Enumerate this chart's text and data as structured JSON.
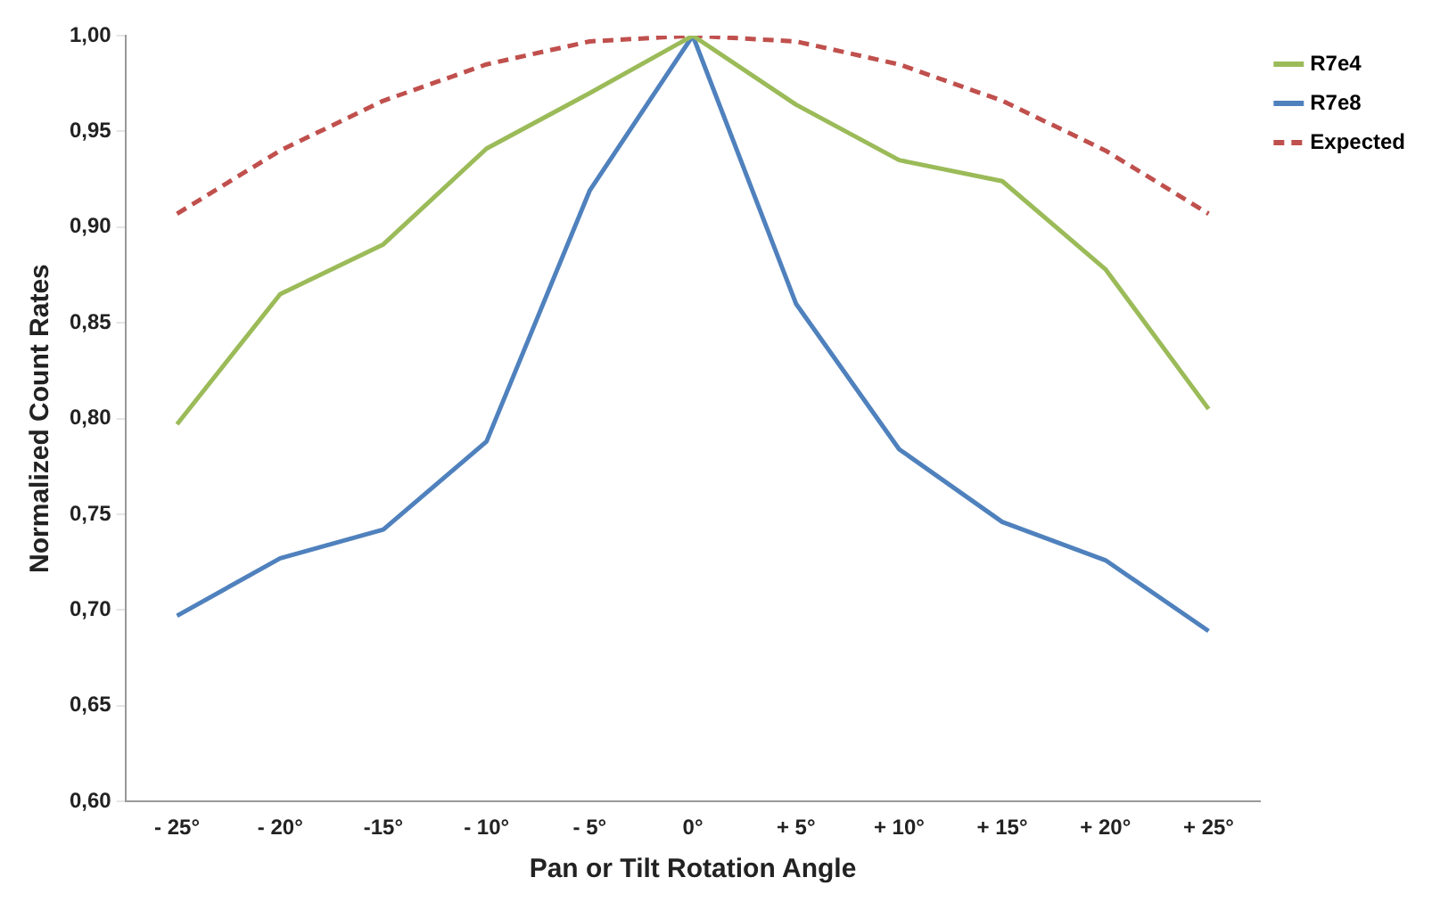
{
  "chart_data": {
    "type": "line",
    "xlabel": "Pan or Tilt Rotation Angle",
    "ylabel": "Normalized Count Rates",
    "categories": [
      "- 25°",
      "- 20°",
      "-15°",
      "- 10°",
      "- 5°",
      "0°",
      "+ 5°",
      "+ 10°",
      "+ 15°",
      "+ 20°",
      "+ 25°"
    ],
    "series": [
      {
        "name": "R7e4",
        "color": "#9bbb59",
        "values": [
          0.797,
          0.865,
          0.891,
          0.941,
          0.97,
          1.0,
          0.964,
          0.935,
          0.924,
          0.878,
          0.805
        ]
      },
      {
        "name": "R7e8",
        "color": "#4f81bd",
        "values": [
          0.697,
          0.727,
          0.742,
          0.788,
          0.919,
          1.0,
          0.86,
          0.784,
          0.746,
          0.726,
          0.689
        ]
      },
      {
        "name": "Expected",
        "color": "#c0504d",
        "line_style": "dashed",
        "values": [
          0.907,
          0.94,
          0.966,
          0.985,
          0.997,
          1.0,
          0.997,
          0.985,
          0.966,
          0.94,
          0.907
        ]
      }
    ],
    "ylim": [
      0.6,
      1.0
    ],
    "yticks": [
      {
        "value": 0.6,
        "label": "0,60"
      },
      {
        "value": 0.65,
        "label": "0,65"
      },
      {
        "value": 0.7,
        "label": "0,70"
      },
      {
        "value": 0.75,
        "label": "0,75"
      },
      {
        "value": 0.8,
        "label": "0,80"
      },
      {
        "value": 0.85,
        "label": "0,85"
      },
      {
        "value": 0.9,
        "label": "0,90"
      },
      {
        "value": 0.95,
        "label": "0,95"
      },
      {
        "value": 1.0,
        "label": "1,00"
      }
    ],
    "grid": false,
    "legend": "top right",
    "marker": "none"
  }
}
